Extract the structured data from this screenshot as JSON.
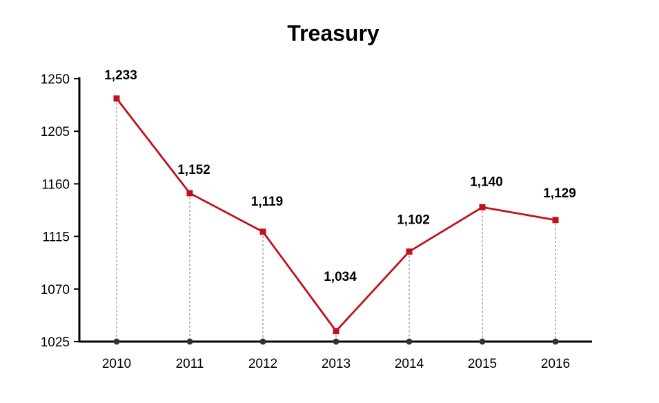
{
  "chart_data": {
    "type": "line",
    "title": "Treasury",
    "xlabel": "",
    "ylabel": "",
    "categories": [
      "2010",
      "2011",
      "2012",
      "2013",
      "2014",
      "2015",
      "2016"
    ],
    "series": [
      {
        "values": [
          1233,
          1152,
          1119,
          1034,
          1102,
          1140,
          1129
        ],
        "data_labels": [
          "1,233",
          "1,152",
          "1,119",
          "1,034",
          "1,102",
          "1,140",
          "1,129"
        ],
        "color": "#c0101d",
        "marker": "square"
      }
    ],
    "yticks": [
      1025,
      1070,
      1115,
      1160,
      1205,
      1250
    ],
    "ylim": [
      1025,
      1250
    ],
    "grid": false,
    "drop_lines": true,
    "legend": "none",
    "colors": {
      "series": "#c0101d",
      "axis": "#000000",
      "drop_line": "#888888",
      "base_marker": "#333333"
    }
  }
}
